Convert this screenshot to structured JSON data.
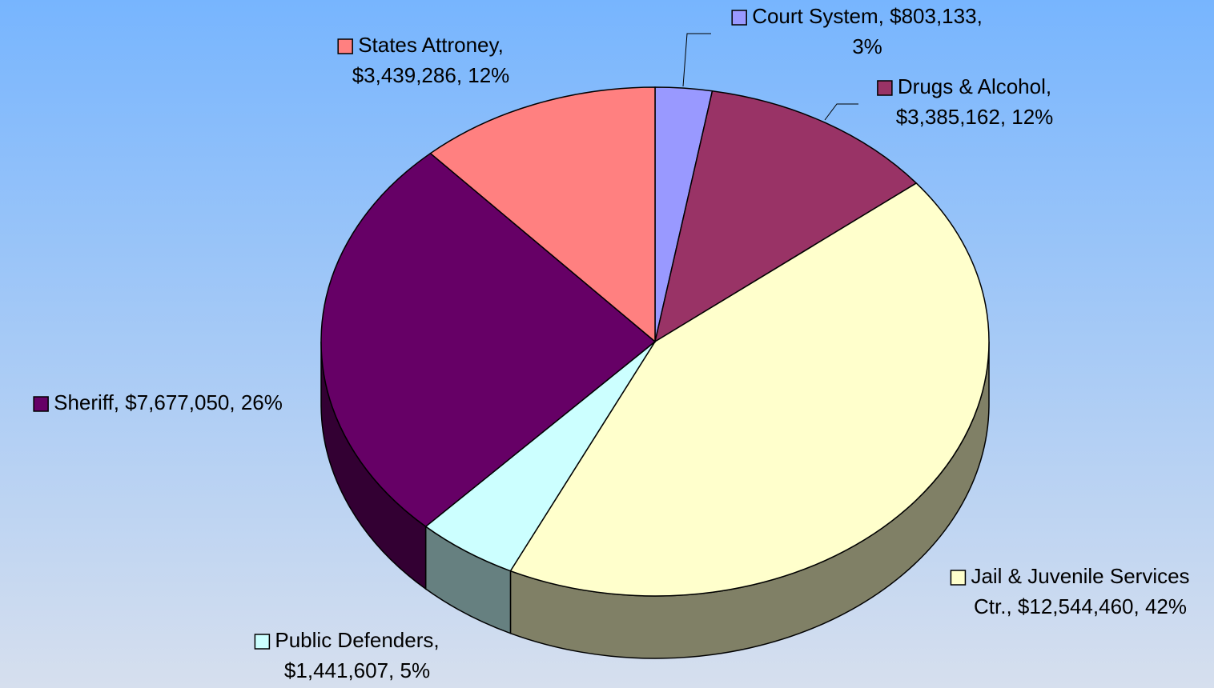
{
  "chart_data": {
    "type": "pie",
    "values": [
      803133,
      3385162,
      12544460,
      1441607,
      7677050,
      3439286
    ],
    "value_labels": [
      [
        "Court System, $803,133,",
        "3%"
      ],
      [
        "Drugs & Alcohol,",
        "$3,385,162, 12%"
      ],
      [
        "Jail & Juvenile Services",
        "Ctr., $12,544,460, 42%"
      ],
      [
        "Public Defenders,",
        "$1,441,607, 5%"
      ],
      [
        "Sheriff, $7,677,050, 26%"
      ],
      [
        "States Attroney,",
        "$3,439,286, 12%"
      ]
    ],
    "colors": [
      "#9999ff",
      "#993366",
      "#ffffcc",
      "#ccffff",
      "#660066",
      "#ff8080"
    ]
  }
}
